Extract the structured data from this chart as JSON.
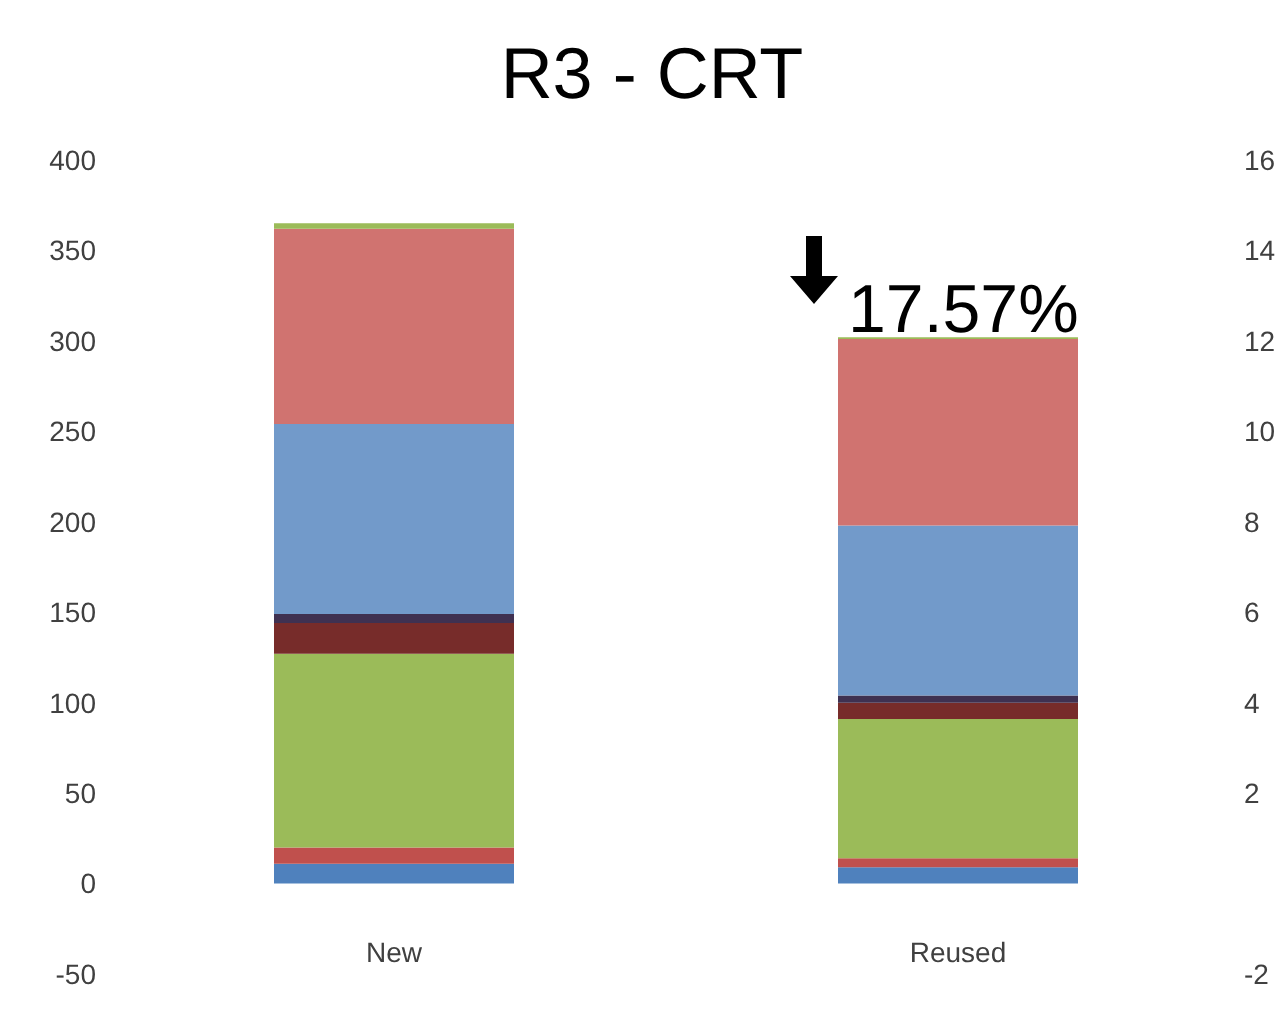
{
  "chart_data": {
    "type": "bar",
    "title": "R3 - CRT",
    "categories": [
      "New",
      "Reused"
    ],
    "stacked": true,
    "grid": false,
    "series": [
      {
        "color": "#4f81bd",
        "values": [
          11,
          9
        ]
      },
      {
        "color": "#c0504d",
        "values": [
          9,
          5
        ]
      },
      {
        "color": "#9bbb59",
        "values": [
          107,
          77
        ]
      },
      {
        "color": "#772c2a",
        "values": [
          17,
          9
        ]
      },
      {
        "color": "#3f3151",
        "values": [
          5,
          4
        ]
      },
      {
        "color": "#729aca",
        "values": [
          105,
          94
        ]
      },
      {
        "color": "#d07370",
        "values": [
          108,
          103
        ]
      },
      {
        "color": "#9bbb59",
        "values": [
          3,
          1
        ]
      }
    ],
    "ylim": [
      -50,
      400
    ],
    "yticks": [
      -50,
      0,
      50,
      100,
      150,
      200,
      250,
      300,
      350,
      400
    ],
    "y2lim": [
      -2,
      16
    ],
    "y2ticks": [
      -2,
      2,
      4,
      6,
      8,
      10,
      12,
      14,
      16
    ],
    "annotations": [
      {
        "text": "17.57%",
        "x": "Reused",
        "y": 300.5
      }
    ]
  }
}
